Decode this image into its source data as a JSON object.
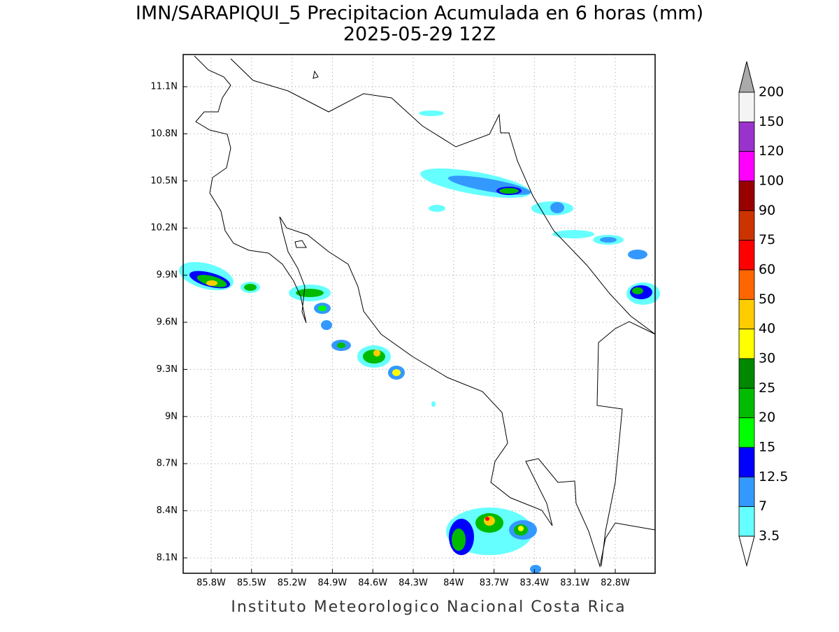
{
  "title": "IMN/SARAPIQUI_5 Precipitacion Acumulada en 6 horas (mm)",
  "subtitle": "2025-05-29 12Z",
  "latitude_labels": [
    "11.1N",
    "10.8N",
    "10.5N",
    "10.2N",
    "9.9N",
    "9.6N",
    "9.3N",
    "9N",
    "8.7N",
    "8.4N",
    "8.1N"
  ],
  "longitude_labels": [
    "85.8W",
    "85.5W",
    "85.2W",
    "84.9W",
    "84.6W",
    "84.3W",
    "84W",
    "83.7W",
    "83.4W",
    "83.1W",
    "82.8W"
  ],
  "colorbar": {
    "labels": [
      "200",
      "150",
      "120",
      "100",
      "90",
      "75",
      "60",
      "50",
      "40",
      "30",
      "25",
      "20",
      "15",
      "12.5",
      "7",
      "3.5"
    ],
    "colors": [
      "#f4f4f4",
      "#9933cc",
      "#ff00ff",
      "#990000",
      "#cc3300",
      "#ff0000",
      "#ff6600",
      "#ffcc00",
      "#ffff00",
      "#008800",
      "#00bb00",
      "#00ff00",
      "#0000ff",
      "#3399ff",
      "#66ffff"
    ],
    "over_color": "#aaaaaa",
    "under_color": "#ffffff"
  },
  "footer": "Instituto Meteorologico Nacional Costa Rica"
}
